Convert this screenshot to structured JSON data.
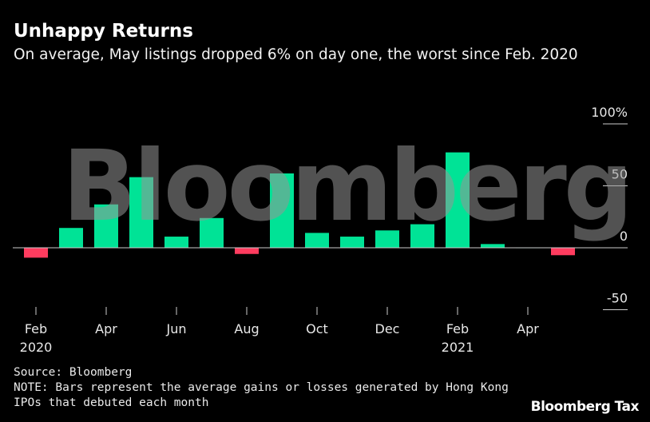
{
  "header": {
    "title": "Unhappy Returns",
    "subtitle": "On average, May listings dropped 6% on day one, the worst since Feb. 2020"
  },
  "chart_data": {
    "type": "bar",
    "title": "Unhappy Returns",
    "subtitle": "On average, May listings dropped 6% on day one, the worst since Feb. 2020",
    "categories": [
      "Feb 2020",
      "Mar 2020",
      "Apr 2020",
      "May 2020",
      "Jun 2020",
      "Jul 2020",
      "Aug 2020",
      "Sep 2020",
      "Oct 2020",
      "Nov 2020",
      "Dec 2020",
      "Jan 2021",
      "Feb 2021",
      "Mar 2021",
      "Apr 2021",
      "May 2021"
    ],
    "values": [
      -8,
      16,
      35,
      57,
      9,
      24,
      -5,
      60,
      12,
      9,
      14,
      19,
      77,
      3,
      0.3,
      -6
    ],
    "x_tick_labels": [
      {
        "label": "Feb",
        "year": "2020",
        "index": 0
      },
      {
        "label": "Apr",
        "year": "",
        "index": 2
      },
      {
        "label": "Jun",
        "year": "",
        "index": 4
      },
      {
        "label": "Aug",
        "year": "",
        "index": 6
      },
      {
        "label": "Oct",
        "year": "",
        "index": 8
      },
      {
        "label": "Dec",
        "year": "",
        "index": 10
      },
      {
        "label": "Feb",
        "year": "2021",
        "index": 12
      },
      {
        "label": "Apr",
        "year": "",
        "index": 14
      }
    ],
    "y_ticks": [
      {
        "value": 100,
        "label": "100%"
      },
      {
        "value": 50,
        "label": "50"
      },
      {
        "value": 0,
        "label": "0"
      },
      {
        "value": -50,
        "label": "-50"
      }
    ],
    "ylim": [
      -50,
      100
    ],
    "ylabel": "",
    "xlabel": "",
    "y_axis_position": "right",
    "grid": false,
    "colors": {
      "positive": "#00e396",
      "negative": "#ff3c5f",
      "axis": "#cccccc"
    }
  },
  "watermark": "Bloomberg",
  "footer": {
    "source": "Source: Bloomberg",
    "note": "NOTE: Bars represent the average gains or losses generated by Hong Kong IPOs that debuted each month",
    "brand": "Bloomberg Tax"
  }
}
